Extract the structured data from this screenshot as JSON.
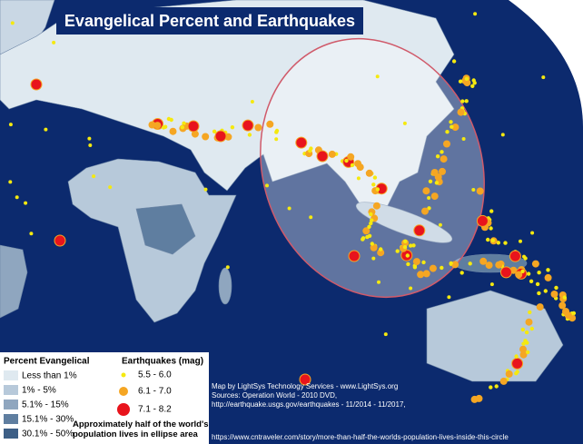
{
  "title": "Evangelical Percent and Earthquakes",
  "legend_evangelical": {
    "title": "Percent Evangelical",
    "items": [
      "Less than 1%",
      "1% - 5%",
      "5.1% - 15%",
      "15.1% - 30%",
      "30.1% - 50%"
    ]
  },
  "legend_earthquakes": {
    "title": "Earthquakes (mag)",
    "items": [
      "5.5 - 6.0",
      "6.1 - 7.0",
      "7.1 - 8.2"
    ]
  },
  "note": "Approximately half of the world's population lives in ellipse area",
  "credits": [
    "Map by LightSys Technology Services - www.LightSys.org",
    "Sources: Operation World - 2010 DVD,",
    "http://earthquake.usgs.gov/earthquakes - 11/2014 - 11/2017,",
    "https://www.cntraveler.com/story/more-than-half-the-worlds-population-lives-inside-this-circle"
  ]
}
